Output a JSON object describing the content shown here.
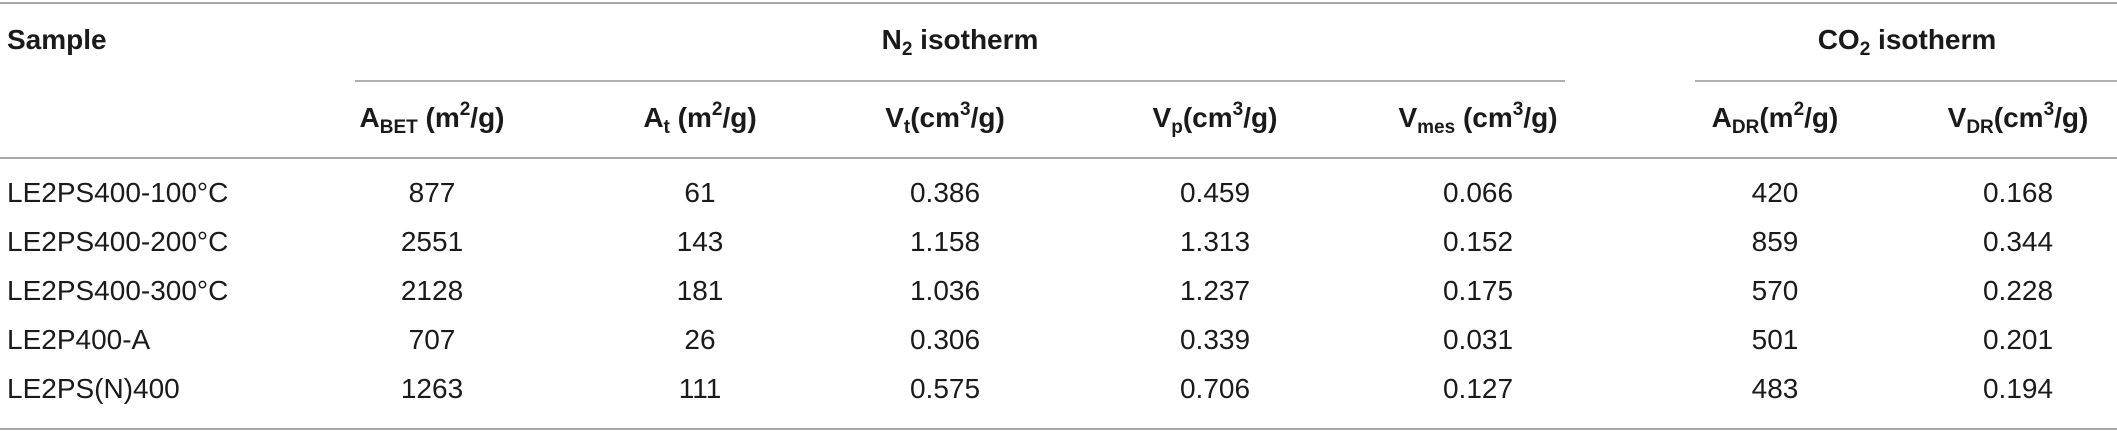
{
  "header": {
    "sample": "Sample",
    "n2_group": {
      "pre": "N",
      "sub": "2",
      "post": " isotherm"
    },
    "co2_group": {
      "pre": "CO",
      "sub": "2",
      "post": " isotherm"
    },
    "cols": [
      {
        "pre": "A",
        "sub": "BET",
        "mid": " (m",
        "sup": "2",
        "post": "/g)"
      },
      {
        "pre": "A",
        "sub": "t",
        "mid": " (m",
        "sup": "2",
        "post": "/g)"
      },
      {
        "pre": "V",
        "sub": "t",
        "mid": "(cm",
        "sup": "3",
        "post": "/g)"
      },
      {
        "pre": "V",
        "sub": "p",
        "mid": "(cm",
        "sup": "3",
        "post": "/g)"
      },
      {
        "pre": "V",
        "sub": "mes",
        "mid": " (cm",
        "sup": "3",
        "post": "/g)"
      },
      {
        "pre": "A",
        "sub": "DR",
        "mid": "(m",
        "sup": "2",
        "post": "/g)"
      },
      {
        "pre": "V",
        "sub": "DR",
        "mid": "(cm",
        "sup": "3",
        "post": "/g)"
      }
    ]
  },
  "rows": [
    {
      "sample": "LE2PS400-100°C",
      "values": [
        "877",
        "61",
        "0.386",
        "0.459",
        "0.066",
        "420",
        "0.168"
      ]
    },
    {
      "sample": "LE2PS400-200°C",
      "values": [
        "2551",
        "143",
        "1.158",
        "1.313",
        "0.152",
        "859",
        "0.344"
      ]
    },
    {
      "sample": "LE2PS400-300°C",
      "values": [
        "2128",
        "181",
        "1.036",
        "1.237",
        "0.175",
        "570",
        "0.228"
      ]
    },
    {
      "sample": "LE2P400-A",
      "values": [
        "707",
        "26",
        "0.306",
        "0.339",
        "0.031",
        "501",
        "0.201"
      ]
    },
    {
      "sample": "LE2PS(N)400",
      "values": [
        "1263",
        "111",
        "0.575",
        "0.706",
        "0.127",
        "483",
        "0.194"
      ]
    }
  ]
}
